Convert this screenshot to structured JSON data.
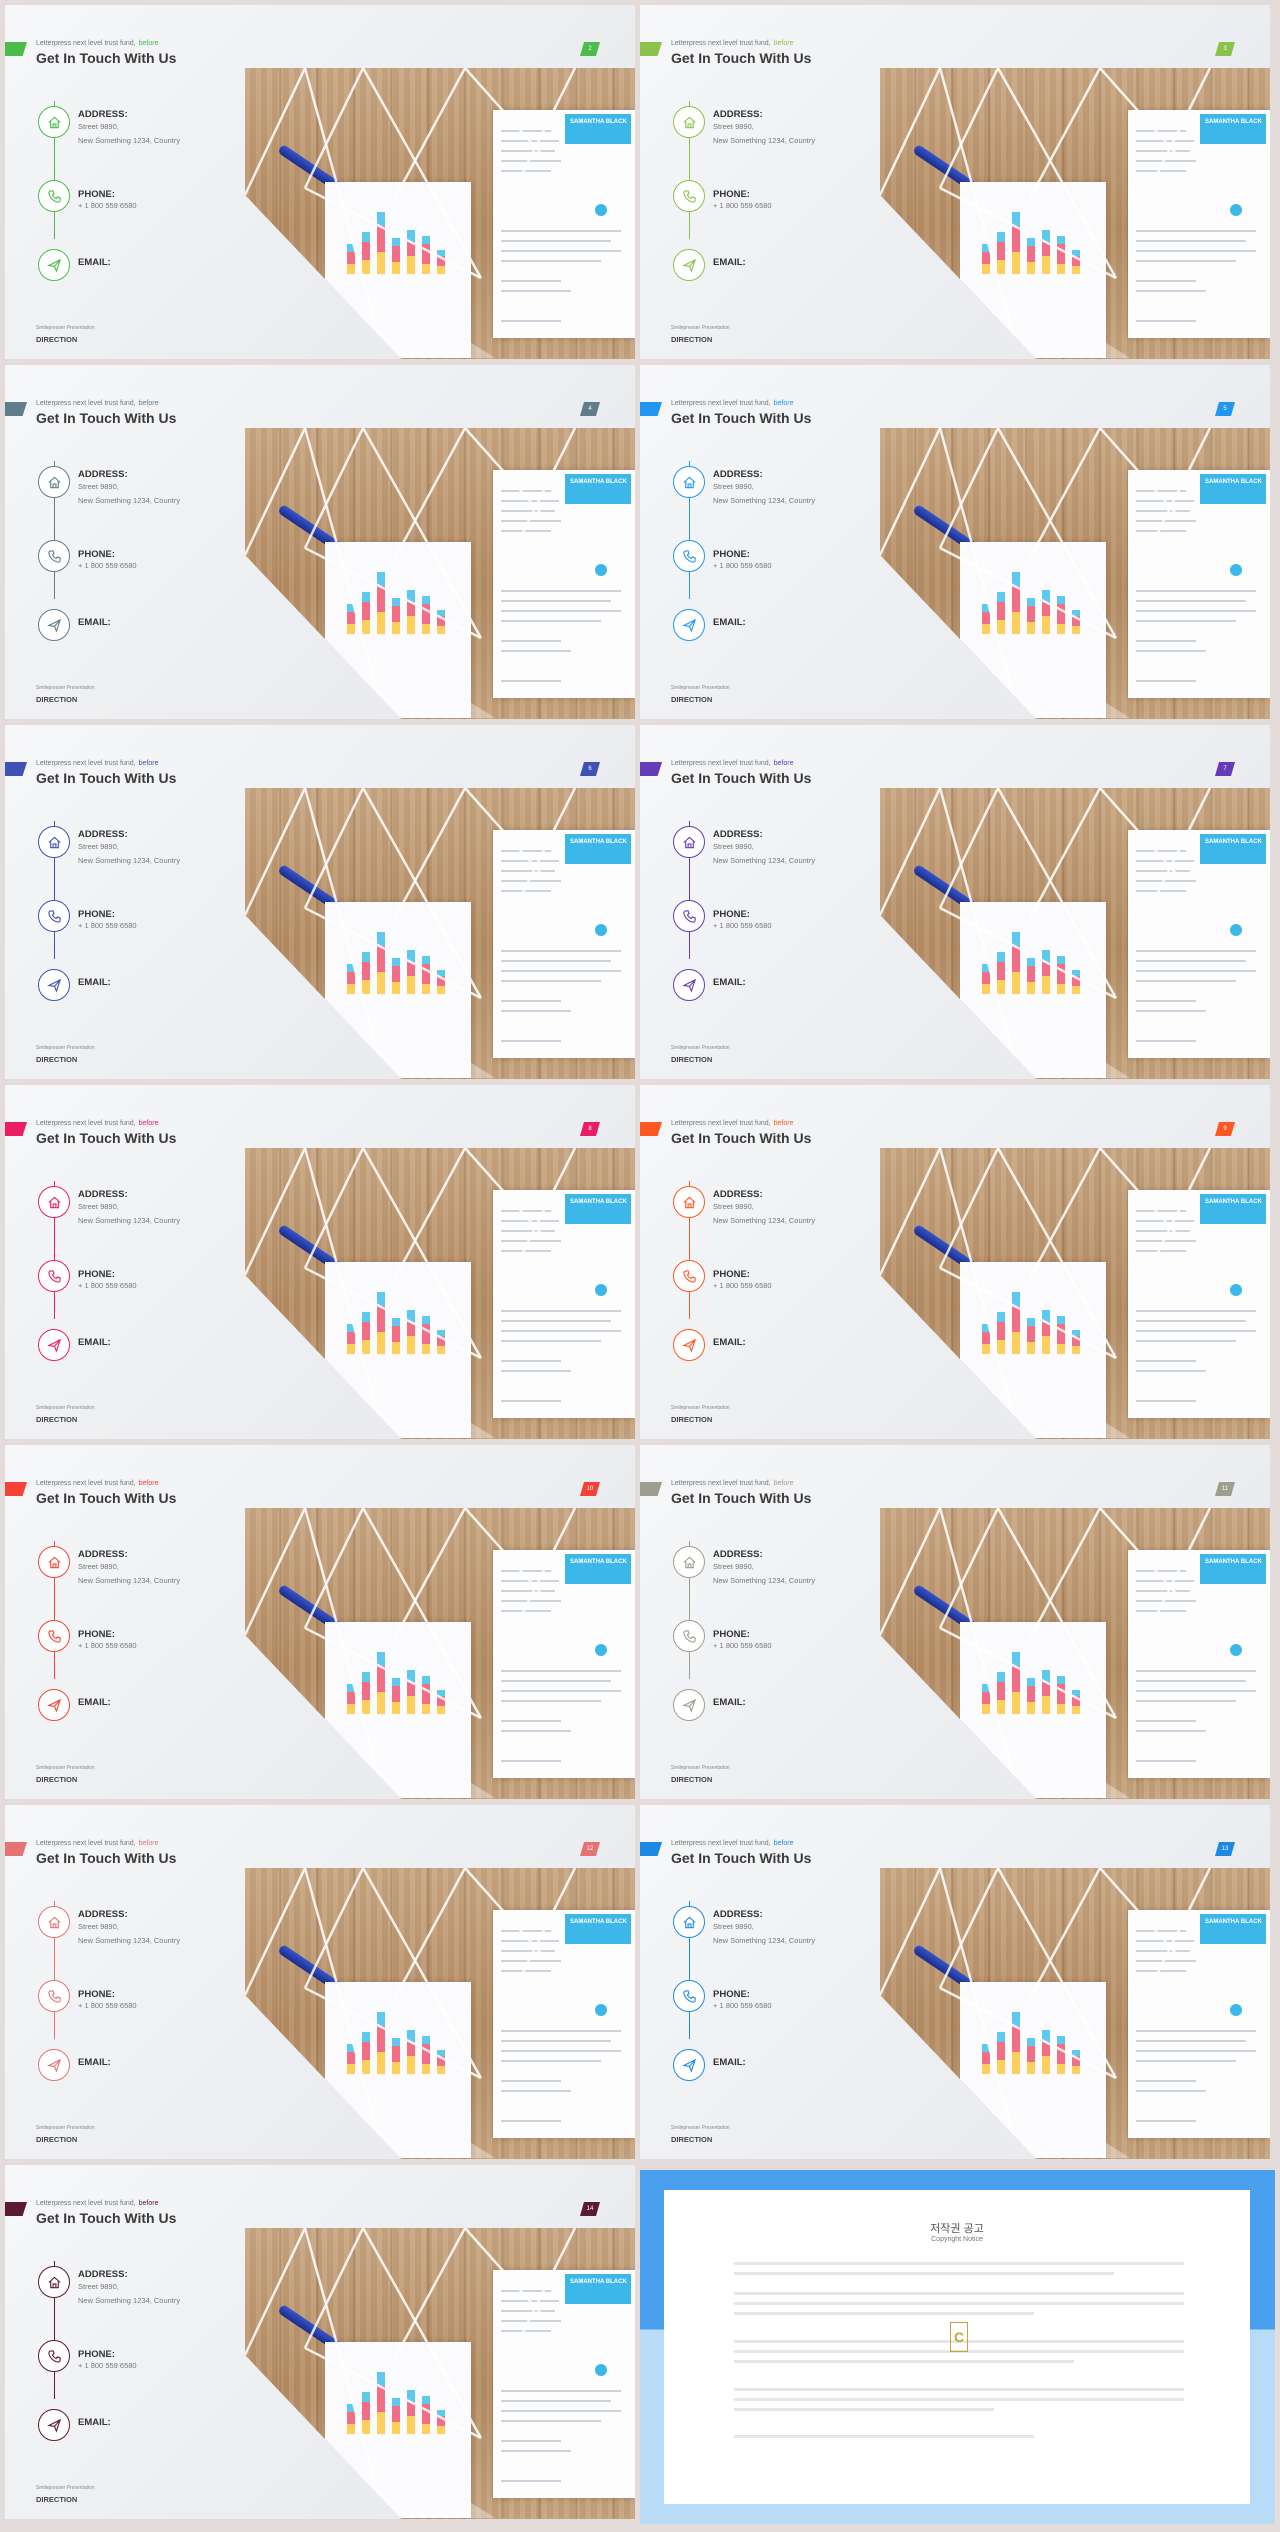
{
  "slide_template": {
    "subtitle": "Letterpress next level trust fund,",
    "subtitle_highlight": "before",
    "title": "Get In Touch With Us",
    "address_label": "ADDRESS:",
    "address_line1": "Street 9890,",
    "address_line2": "New Something 1234, Country",
    "phone_label": "PHONE:",
    "phone_value": "+ 1 800 559 6580",
    "email_label": "EMAIL:",
    "footer_small": "Smilepresser Presentation",
    "footer_main": "DIRECTION",
    "resume_name": "SAMANTHA BLACK"
  },
  "slides": [
    {
      "number": "2",
      "accent": "#4dbb4a"
    },
    {
      "number": "3",
      "accent": "#8bc34a"
    },
    {
      "number": "4",
      "accent": "#607d8b"
    },
    {
      "number": "5",
      "accent": "#2196f3"
    },
    {
      "number": "6",
      "accent": "#3f51b5"
    },
    {
      "number": "7",
      "accent": "#673ab7"
    },
    {
      "number": "8",
      "accent": "#e91e63"
    },
    {
      "number": "9",
      "accent": "#ff5722"
    },
    {
      "number": "10",
      "accent": "#f44336"
    },
    {
      "number": "11",
      "accent": "#9e9e8e"
    },
    {
      "number": "12",
      "accent": "#e57373"
    },
    {
      "number": "13",
      "accent": "#1e88e5"
    },
    {
      "number": "14",
      "accent": "#5b1a33"
    }
  ],
  "copyright": {
    "title": "저작권 공고",
    "subtitle": "Copyright Notice",
    "logo": "C"
  }
}
